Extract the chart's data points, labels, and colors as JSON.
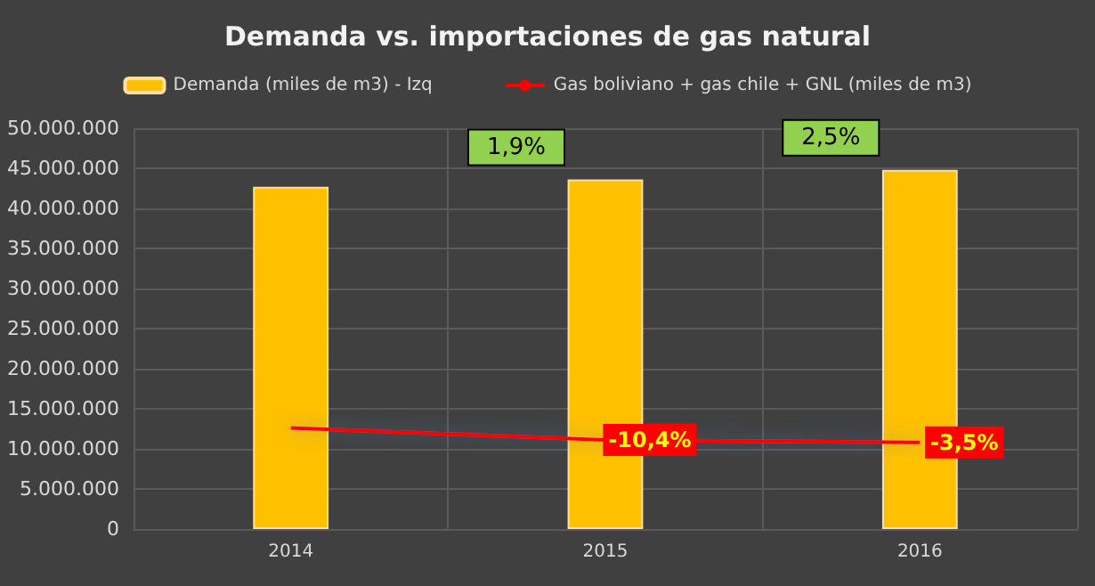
{
  "chart_data": {
    "type": "bar",
    "title": "Demanda vs. importaciones de gas natural",
    "categories": [
      "2014",
      "2015",
      "2016"
    ],
    "series": [
      {
        "name": "Demanda (miles de m3) - Izq",
        "color": "#ffc000",
        "values": [
          42700000,
          43600000,
          44800000
        ]
      },
      {
        "name": "Gas boliviano + gas chile + GNL (miles de m3)",
        "type": "line",
        "color": "#ff0000",
        "values": [
          12600000,
          11100000,
          10800000
        ]
      }
    ],
    "ylim": [
      0,
      50000000
    ],
    "yticks": [
      {
        "value": 0,
        "label": "0"
      },
      {
        "value": 5000000,
        "label": "5.000.000"
      },
      {
        "value": 10000000,
        "label": "10.000.000"
      },
      {
        "value": 15000000,
        "label": "15.000.000"
      },
      {
        "value": 20000000,
        "label": "20.000.000"
      },
      {
        "value": 25000000,
        "label": "25.000.000"
      },
      {
        "value": 30000000,
        "label": "30.000.000"
      },
      {
        "value": 35000000,
        "label": "35.000.000"
      },
      {
        "value": 40000000,
        "label": "40.000.000"
      },
      {
        "value": 45000000,
        "label": "45.000.000"
      },
      {
        "value": 50000000,
        "label": "50.000.000"
      }
    ],
    "annotations": [
      {
        "text": "1,9%",
        "x": "2015",
        "y": 43600000
      },
      {
        "text": "2,5%",
        "x": "2016",
        "y": 44800000
      },
      {
        "text": "-10,4%",
        "x": "2015",
        "y": 11100000
      },
      {
        "text": "-3,5%",
        "x": "2016",
        "y": 10800000
      }
    ],
    "grid": true,
    "legend": "top",
    "marker": "none"
  }
}
